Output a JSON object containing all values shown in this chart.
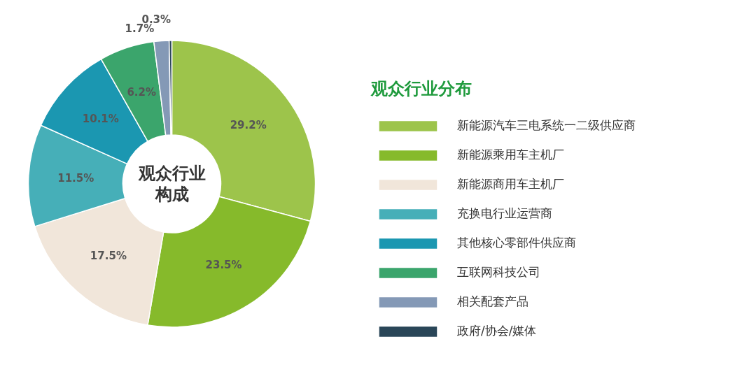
{
  "chart_data": {
    "type": "donut",
    "legend_title": "观众行业分布",
    "annotations": [
      "观众行业",
      "构成"
    ],
    "legend": "right",
    "categories": [
      "新能源汽车三电系统一二级供应商",
      "新能源乘用车主机厂",
      "新能源商用车主机厂",
      "充换电行业运营商",
      "其他核心零部件供应商",
      "互联网科技公司",
      "相关配套产品",
      "政府/协会/媒体"
    ],
    "values": [
      29.2,
      23.5,
      17.5,
      11.5,
      10.1,
      6.2,
      1.7,
      0.3
    ],
    "value_labels": [
      "29.2%",
      "23.5%",
      "17.5%",
      "11.5%",
      "10.1%",
      "6.2%",
      "1.7%",
      "0.3%"
    ],
    "colors": [
      "#9dc44b",
      "#86ba2b",
      "#f1e6da",
      "#46afb8",
      "#1b97b1",
      "#3ba56c",
      "#8499b6",
      "#2a4658"
    ]
  }
}
